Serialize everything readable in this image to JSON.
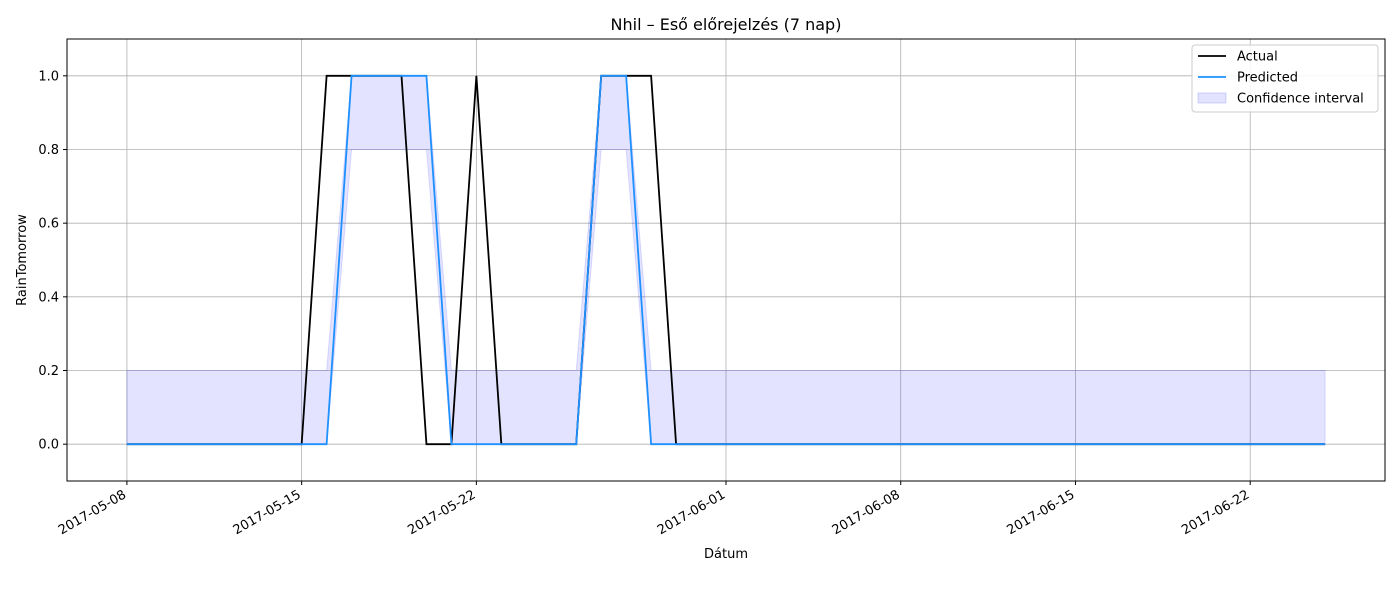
{
  "chart_data": {
    "type": "line",
    "title": "Nhil – Eső előrejelzés (7 nap)",
    "xlabel": "Dátum",
    "ylabel": "RainTomorrow",
    "x_start_date": "2017-05-08",
    "x": [
      "2017-05-08",
      "2017-05-09",
      "2017-05-10",
      "2017-05-11",
      "2017-05-12",
      "2017-05-13",
      "2017-05-14",
      "2017-05-15",
      "2017-05-16",
      "2017-05-17",
      "2017-05-18",
      "2017-05-19",
      "2017-05-20",
      "2017-05-21",
      "2017-05-22",
      "2017-05-23",
      "2017-05-24",
      "2017-05-25",
      "2017-05-26",
      "2017-05-27",
      "2017-05-28",
      "2017-05-29",
      "2017-05-30",
      "2017-05-31",
      "2017-06-01",
      "2017-06-02",
      "2017-06-03",
      "2017-06-04",
      "2017-06-05",
      "2017-06-06",
      "2017-06-07",
      "2017-06-08",
      "2017-06-09",
      "2017-06-10",
      "2017-06-11",
      "2017-06-12",
      "2017-06-13",
      "2017-06-14",
      "2017-06-15",
      "2017-06-16",
      "2017-06-17",
      "2017-06-18",
      "2017-06-19",
      "2017-06-20",
      "2017-06-21",
      "2017-06-22",
      "2017-06-23",
      "2017-06-24",
      "2017-06-25"
    ],
    "series": [
      {
        "name": "Actual",
        "color": "#000000",
        "values": [
          0,
          0,
          0,
          0,
          0,
          0,
          0,
          0,
          1,
          1,
          1,
          1,
          0,
          0,
          1,
          0,
          0,
          0,
          0,
          1,
          1,
          1,
          0,
          0,
          0,
          0,
          0,
          0,
          0,
          0,
          0,
          0,
          0,
          0,
          0,
          0,
          0,
          0,
          0,
          0,
          0,
          0,
          0,
          0,
          0,
          0,
          0,
          0,
          0
        ]
      },
      {
        "name": "Predicted",
        "color": "#1e90ff",
        "values": [
          0,
          0,
          0,
          0,
          0,
          0,
          0,
          0,
          0,
          1,
          1,
          1,
          1,
          0,
          0,
          0,
          0,
          0,
          0,
          1,
          1,
          0,
          0,
          0,
          0,
          0,
          0,
          0,
          0,
          0,
          0,
          0,
          0,
          0,
          0,
          0,
          0,
          0,
          0,
          0,
          0,
          0,
          0,
          0,
          0,
          0,
          0,
          0,
          0
        ]
      }
    ],
    "confidence_interval": {
      "name": "Confidence interval",
      "color": "#0000ff",
      "lower": [
        0,
        0,
        0,
        0,
        0,
        0,
        0,
        0,
        0,
        0.8,
        0.8,
        0.8,
        0.8,
        0,
        0,
        0,
        0,
        0,
        0,
        0.8,
        0.8,
        0,
        0,
        0,
        0,
        0,
        0,
        0,
        0,
        0,
        0,
        0,
        0,
        0,
        0,
        0,
        0,
        0,
        0,
        0,
        0,
        0,
        0,
        0,
        0,
        0,
        0,
        0,
        0
      ],
      "upper": [
        0.2,
        0.2,
        0.2,
        0.2,
        0.2,
        0.2,
        0.2,
        0.2,
        0.2,
        1,
        1,
        1,
        1,
        0.2,
        0.2,
        0.2,
        0.2,
        0.2,
        0.2,
        1,
        1,
        0.2,
        0.2,
        0.2,
        0.2,
        0.2,
        0.2,
        0.2,
        0.2,
        0.2,
        0.2,
        0.2,
        0.2,
        0.2,
        0.2,
        0.2,
        0.2,
        0.2,
        0.2,
        0.2,
        0.2,
        0.2,
        0.2,
        0.2,
        0.2,
        0.2,
        0.2,
        0.2,
        0.2
      ]
    },
    "x_ticks": [
      "2017-05-08",
      "2017-05-15",
      "2017-05-22",
      "2017-06-01",
      "2017-06-08",
      "2017-06-15",
      "2017-06-22"
    ],
    "y_ticks": [
      "0.0",
      "0.2",
      "0.4",
      "0.6",
      "0.8",
      "1.0"
    ],
    "ylim": [
      -0.1,
      1.1
    ],
    "xlim": [
      "2017-05-05.6",
      "2017-06-27.4"
    ],
    "grid": true,
    "legend_position": "top-right"
  }
}
